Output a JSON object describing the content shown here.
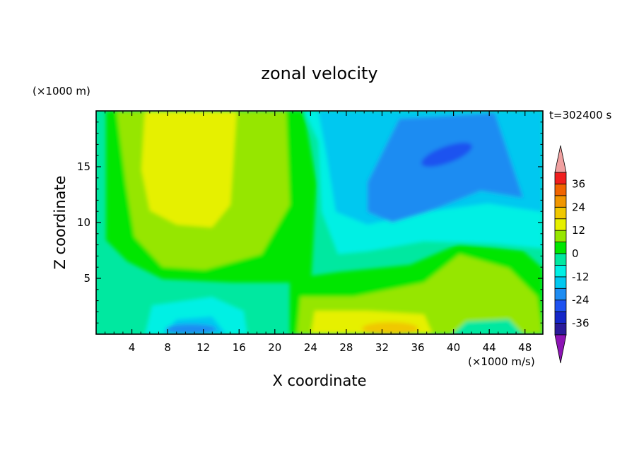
{
  "chart_data": {
    "type": "heatmap",
    "title": "zonal velocity",
    "xlabel": "X coordinate",
    "ylabel": "Z coordinate",
    "y_unit": "(×1000 m)",
    "x_unit": "(×1000 m/s)",
    "time_label": "t=302400 s",
    "xlim": [
      0,
      50
    ],
    "ylim": [
      0,
      20
    ],
    "x_ticks": [
      4,
      8,
      12,
      16,
      20,
      24,
      28,
      32,
      36,
      40,
      44,
      48
    ],
    "y_ticks": [
      5,
      10,
      15
    ],
    "colorbar": {
      "labels": [
        "36",
        "24",
        "12",
        "0",
        "-12",
        "-24",
        "-36"
      ],
      "label_values": [
        36,
        24,
        12,
        0,
        -12,
        -24,
        -36
      ],
      "levels": [
        -42,
        -36,
        -30,
        -24,
        -18,
        -12,
        -6,
        0,
        6,
        12,
        18,
        24,
        30,
        36,
        42
      ],
      "colors": [
        "#5a1aa0",
        "#2a1a9a",
        "#1426c8",
        "#1e52f0",
        "#1e8cf2",
        "#00c8f0",
        "#00f0e4",
        "#00e8a0",
        "#00e600",
        "#96e600",
        "#e6f000",
        "#f0c800",
        "#f09600",
        "#f06400",
        "#f01e1e",
        "#f0a0a0"
      ],
      "under_color": "#8c14b4",
      "over_color": "#f0a0a0"
    },
    "features": [
      {
        "description": "positive core",
        "x": 12,
        "z": 12,
        "value": 15
      },
      {
        "description": "negative core",
        "x": 39,
        "z": 16,
        "value": -22
      },
      {
        "description": "lower positive band",
        "x": 32,
        "z": 1,
        "value": 13
      },
      {
        "description": "lower positive lobe",
        "x": 42,
        "z": 4.5,
        "value": 10
      },
      {
        "description": "near-surface negative",
        "x": 11,
        "z": 0.5,
        "value": -18
      }
    ]
  }
}
